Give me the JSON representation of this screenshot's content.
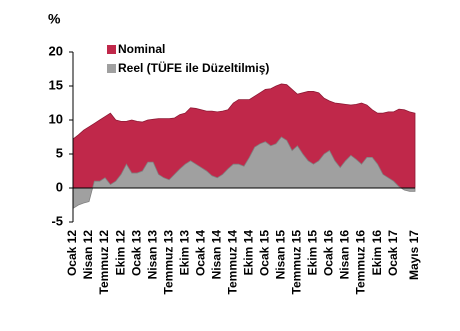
{
  "chart_data": {
    "type": "area",
    "y_unit_label": "%",
    "categories": [
      "Ocak 12",
      null,
      null,
      "Nisan 12",
      null,
      null,
      "Temmuz 12",
      null,
      null,
      "Ekim 12",
      null,
      null,
      "Ocak 13",
      null,
      null,
      "Nisan 13",
      null,
      null,
      "Temmuz 13",
      null,
      null,
      "Ekim 13",
      null,
      null,
      "Ocak 14",
      null,
      null,
      "Nisan 14",
      null,
      null,
      "Temmuz 14",
      null,
      null,
      "Ekim 14",
      null,
      null,
      "Ocak 15",
      null,
      null,
      "Nisan 15",
      null,
      null,
      "Temmuz 15",
      null,
      null,
      "Ekim 15",
      null,
      null,
      "Ocak 16",
      null,
      null,
      "Nisan 16",
      null,
      null,
      "Temmuz 16",
      null,
      null,
      "Ekim 16",
      null,
      null,
      "Ocak 17",
      null,
      null,
      null,
      "Mayıs 17"
    ],
    "series": [
      {
        "name": "Nominal",
        "color": "#c0284a",
        "values": [
          7.2,
          7.8,
          8.5,
          9,
          9.5,
          10,
          10.5,
          11,
          10,
          9.8,
          9.8,
          10,
          9.8,
          9.7,
          10,
          10.1,
          10.2,
          10.2,
          10.2,
          10.3,
          10.8,
          11,
          11.8,
          11.7,
          11.5,
          11.3,
          11.3,
          11.2,
          11.3,
          11.5,
          12.5,
          13,
          13,
          13,
          13.5,
          14,
          14.5,
          14.6,
          15,
          15.3,
          15.2,
          14.5,
          13.8,
          14,
          14.2,
          14.2,
          14,
          13.2,
          12.8,
          12.5,
          12.4,
          12.3,
          12.2,
          12.3,
          12.5,
          12.2,
          11.5,
          11,
          11,
          11.2,
          11.2,
          11.6,
          11.5,
          11.2,
          11
        ]
      },
      {
        "name": "Reel (TÜFE ile Düzeltilmiş)",
        "color": "#a0a0a0",
        "values": [
          -3,
          -2.5,
          -2.2,
          -2,
          1,
          1,
          1.5,
          0.5,
          1,
          2,
          3.5,
          2.2,
          2.2,
          2.5,
          3.8,
          3.8,
          2,
          1.5,
          1.2,
          2,
          2.8,
          3.5,
          4,
          3.5,
          3,
          2.5,
          1.8,
          1.5,
          2,
          2.8,
          3.5,
          3.5,
          3.2,
          4.5,
          6,
          6.5,
          6.8,
          6.2,
          6.5,
          7.5,
          7,
          5.5,
          6.2,
          5,
          4,
          3.5,
          4,
          5,
          5.5,
          4,
          3,
          4,
          4.8,
          4.2,
          3.5,
          4.5,
          4.5,
          3.5,
          2,
          1.5,
          1,
          0.2,
          -0.3,
          -0.5,
          -0.5
        ]
      }
    ],
    "ylim": [
      -5,
      20
    ],
    "yticks": [
      -5,
      0,
      5,
      10,
      15,
      20
    ],
    "legend": "top-left"
  }
}
